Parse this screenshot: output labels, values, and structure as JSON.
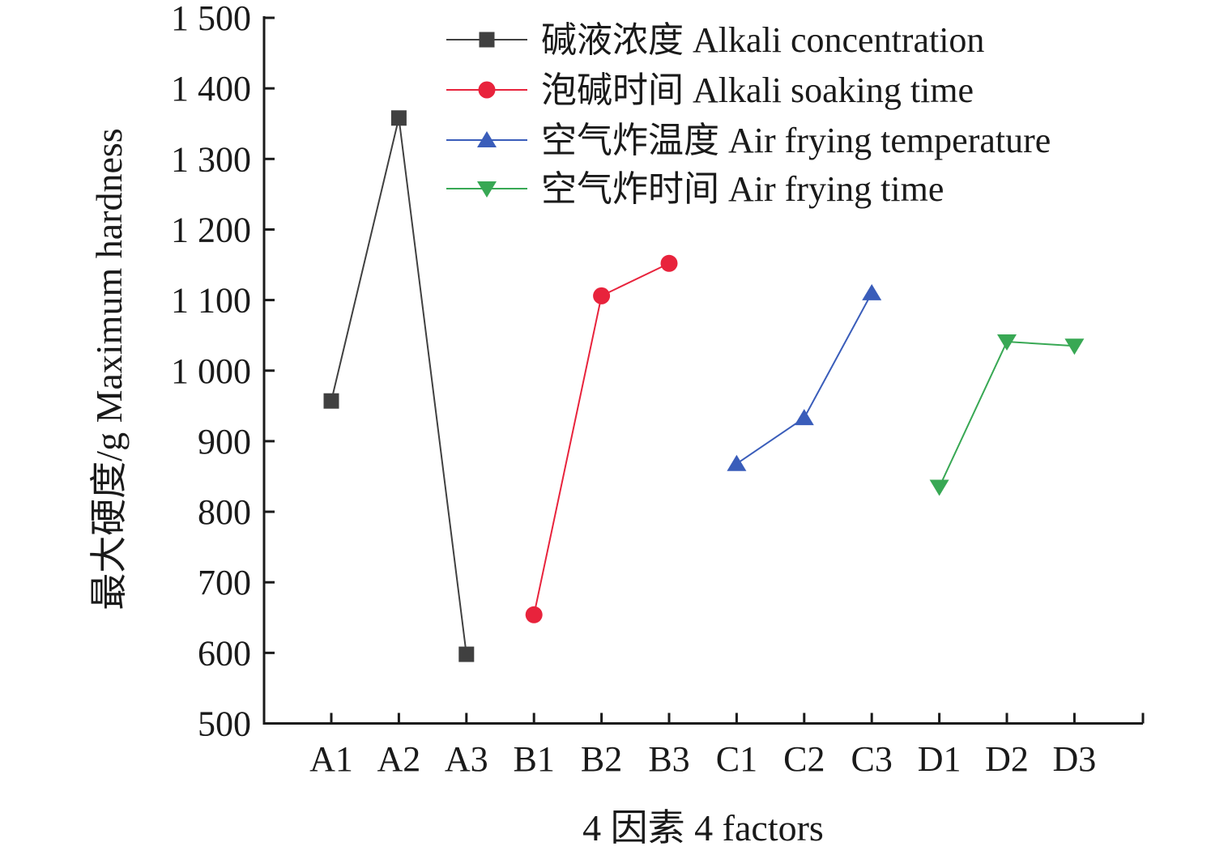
{
  "chart_data": {
    "type": "line",
    "title": "",
    "xlabel": "4 因素 4 factors",
    "ylabel": "最大硬度/g Maximum hardness",
    "categories": [
      "A1",
      "A2",
      "A3",
      "B1",
      "B2",
      "B3",
      "C1",
      "C2",
      "C3",
      "D1",
      "D2",
      "D3"
    ],
    "ylim": [
      500,
      1500
    ],
    "yticks": [
      500,
      600,
      700,
      800,
      900,
      1000,
      1100,
      1200,
      1300,
      1400,
      1500
    ],
    "ytick_labels": [
      "500",
      "600",
      "700",
      "800",
      "900",
      "1 000",
      "1 100",
      "1 200",
      "1 300",
      "1 400",
      "1 500"
    ],
    "grid": false,
    "legend_position": "top-right",
    "series": [
      {
        "name": "碱液浓度 Alkali concentration",
        "marker": "square",
        "color": "#404040",
        "x": [
          "A1",
          "A2",
          "A3"
        ],
        "values": [
          957,
          1358,
          598
        ]
      },
      {
        "name": "泡碱时间 Alkali soaking time",
        "marker": "circle",
        "color": "#e8233c",
        "x": [
          "B1",
          "B2",
          "B3"
        ],
        "values": [
          654,
          1106,
          1152
        ]
      },
      {
        "name": "空气炸温度 Air frying temperature",
        "marker": "triangle-up",
        "color": "#3a5dba",
        "x": [
          "C1",
          "C2",
          "C3"
        ],
        "values": [
          868,
          933,
          1110
        ]
      },
      {
        "name": "空气炸时间 Air frying time",
        "marker": "triangle-down",
        "color": "#38a854",
        "x": [
          "D1",
          "D2",
          "D3"
        ],
        "values": [
          835,
          1041,
          1035
        ]
      }
    ]
  }
}
